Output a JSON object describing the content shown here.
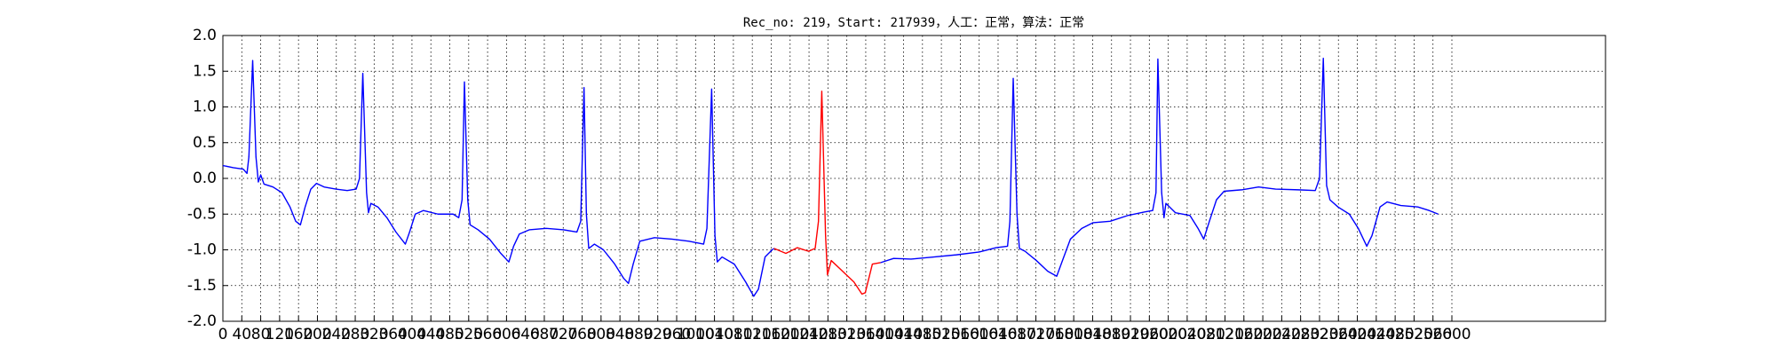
{
  "chart_data": {
    "type": "line",
    "title": "Rec_no: 219，Start: 217939，人工：正常，算法：正常",
    "xlim": [
      0,
      2925
    ],
    "xticks": [
      0,
      40,
      80,
      120,
      160,
      200,
      240,
      280,
      320,
      360,
      400,
      440,
      480,
      520,
      560,
      600,
      640,
      680,
      720,
      760,
      800,
      840,
      880,
      920,
      960,
      1000,
      1040,
      1080,
      1120,
      1160,
      1200,
      1240,
      1280,
      1320,
      1360,
      1400,
      1440,
      1480,
      1520,
      1560,
      1600,
      1640,
      1680,
      1720,
      1760,
      1800,
      1840,
      1880,
      1920,
      1960,
      2000,
      2040,
      2080,
      2120,
      2160,
      2200,
      2240,
      2280,
      2320,
      2360,
      2400,
      2440,
      2480,
      2520,
      2560,
      2600
    ],
    "ylim": [
      -2,
      2
    ],
    "yticks": [
      {
        "value": -2,
        "label": "-2.0"
      },
      {
        "value": -1.5,
        "label": "-1.5"
      },
      {
        "value": -1,
        "label": "-1.0"
      },
      {
        "value": -0.5,
        "label": "-0.5"
      },
      {
        "value": 0,
        "label": "0.0"
      },
      {
        "value": 0.5,
        "label": "0.5"
      },
      {
        "value": 1,
        "label": "1.0"
      },
      {
        "value": 1.5,
        "label": "1.5"
      },
      {
        "value": 2,
        "label": "2.0"
      }
    ],
    "grid": true,
    "series": [
      {
        "color": "#0000ff",
        "x": [
          0,
          22,
          43,
          51,
          55,
          63,
          70,
          75,
          80,
          87,
          106,
          125,
          142,
          154,
          164,
          174,
          186,
          198,
          214,
          239,
          263,
          282,
          289,
          296,
          304,
          308,
          313,
          328,
          347,
          366,
          386,
          395,
          407,
          424,
          455,
          487,
          499,
          506,
          511,
          518,
          523,
          540,
          564,
          588,
          605,
          615,
          627,
          648,
          684,
          721,
          749,
          757,
          764,
          769,
          774,
          786,
          805,
          829,
          848,
          858,
          868,
          882,
          913,
          950,
          986,
          1017,
          1024,
          1034,
          1041,
          1046,
          1056,
          1082,
          1106,
          1123,
          1133,
          1147,
          1162,
          1166,
          null,
          1391,
          1419,
          1456,
          1504,
          1552,
          1600,
          1636,
          1660,
          1665,
          1672,
          1680,
          1685,
          1697,
          1721,
          1745,
          1764,
          1779,
          1793,
          1817,
          1841,
          1877,
          1914,
          1950,
          1967,
          1974,
          1978,
          1986,
          1991,
          1995,
          2015,
          2046,
          2063,
          2075,
          2087,
          2102,
          2118,
          2155,
          2191,
          2227,
          2275,
          2311,
          2320,
          2328,
          2335,
          2342,
          2359,
          2383,
          2402,
          2420,
          2431,
          2448,
          2463,
          2492,
          2528,
          2552,
          2571
        ],
        "values": [
          0.18,
          0.15,
          0.13,
          0.07,
          0.3,
          1.65,
          0.3,
          -0.05,
          0.05,
          -0.08,
          -0.12,
          -0.2,
          -0.4,
          -0.6,
          -0.65,
          -0.4,
          -0.15,
          -0.07,
          -0.12,
          -0.15,
          -0.17,
          -0.15,
          0.0,
          1.47,
          -0.2,
          -0.48,
          -0.35,
          -0.4,
          -0.55,
          -0.75,
          -0.92,
          -0.75,
          -0.5,
          -0.45,
          -0.5,
          -0.5,
          -0.55,
          -0.3,
          1.35,
          -0.3,
          -0.65,
          -0.72,
          -0.85,
          -1.05,
          -1.17,
          -0.95,
          -0.78,
          -0.72,
          -0.7,
          -0.72,
          -0.75,
          -0.6,
          1.27,
          -0.5,
          -0.98,
          -0.92,
          -1.0,
          -1.2,
          -1.4,
          -1.47,
          -1.2,
          -0.88,
          -0.83,
          -0.85,
          -0.88,
          -0.92,
          -0.7,
          1.25,
          -0.8,
          -1.17,
          -1.1,
          -1.2,
          -1.45,
          -1.65,
          -1.55,
          -1.1,
          -1.0,
          -0.98,
          null,
          -1.18,
          -1.12,
          -1.13,
          -1.1,
          -1.07,
          -1.03,
          -0.97,
          -0.95,
          -0.6,
          1.4,
          -0.5,
          -0.98,
          -1.02,
          -1.15,
          -1.3,
          -1.37,
          -1.1,
          -0.85,
          -0.7,
          -0.62,
          -0.6,
          -0.52,
          -0.47,
          -0.45,
          -0.2,
          1.67,
          -0.2,
          -0.55,
          -0.35,
          -0.48,
          -0.52,
          -0.7,
          -0.85,
          -0.6,
          -0.3,
          -0.18,
          -0.16,
          -0.12,
          -0.15,
          -0.16,
          -0.17,
          0.0,
          1.68,
          -0.1,
          -0.3,
          -0.4,
          -0.5,
          -0.7,
          -0.95,
          -0.8,
          -0.4,
          -0.33,
          -0.38,
          -0.4,
          -0.45,
          -0.5
        ]
      },
      {
        "color": "#ff0000",
        "x": [
          1166,
          1191,
          1215,
          1239,
          1253,
          1260,
          1267,
          1275,
          1279,
          1287,
          1311,
          1335,
          1352,
          1359,
          1374,
          1391
        ],
        "values": [
          -0.98,
          -1.05,
          -0.97,
          -1.02,
          -0.98,
          -0.6,
          1.22,
          -0.8,
          -1.35,
          -1.15,
          -1.3,
          -1.45,
          -1.62,
          -1.6,
          -1.2,
          -1.18
        ]
      }
    ]
  }
}
